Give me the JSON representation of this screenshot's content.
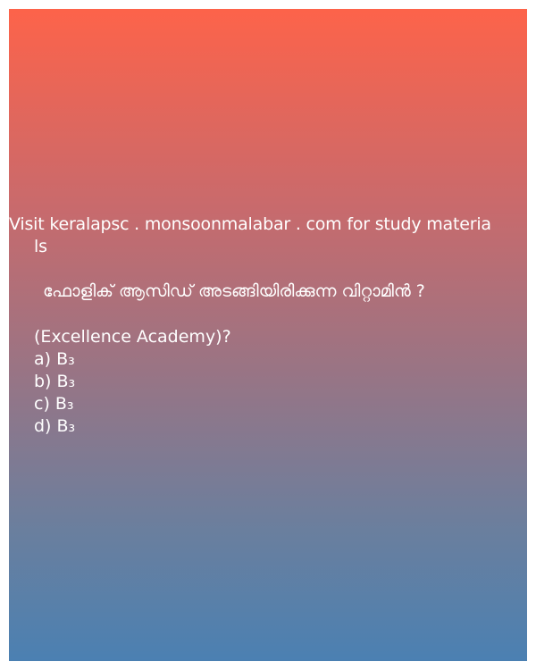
{
  "source_line_1": "Visit keralapsc . monsoonmalabar . com for study materia",
  "source_line_2": "ls",
  "question": "ഫോളിക് ആസിഡ് അടങ്ങിയിരിക്കുന്ന വിറ്റാമിൻ ?",
  "subtitle": "(Excellence Academy)?",
  "options": [
    {
      "label": "a) B₃"
    },
    {
      "label": "b) B₃"
    },
    {
      "label": "c) B₃"
    },
    {
      "label": "d) B₃"
    }
  ]
}
